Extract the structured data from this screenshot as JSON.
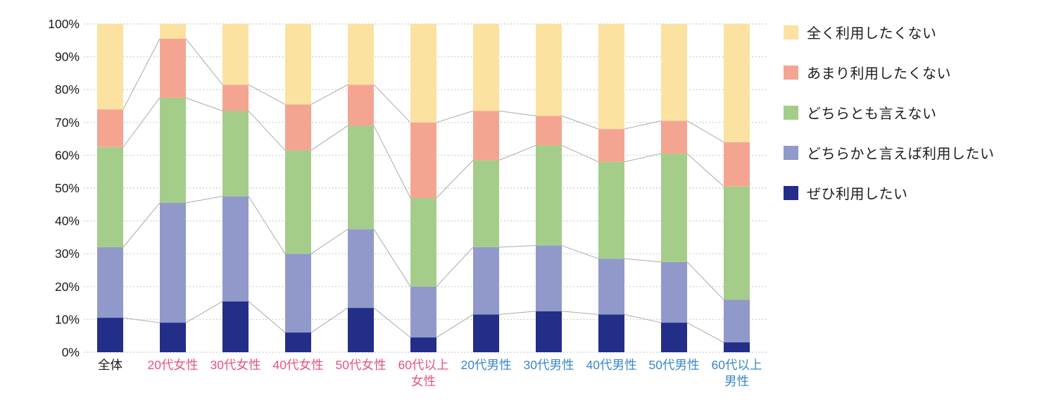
{
  "chart_data": {
    "type": "bar",
    "subtype": "100-percent-stacked-column",
    "title": "",
    "xlabel": "",
    "ylabel": "",
    "ylim": [
      0,
      100
    ],
    "grid": "horizontal-dotted",
    "legend_position": "right",
    "yticks": [
      "0%",
      "10%",
      "20%",
      "30%",
      "40%",
      "50%",
      "60%",
      "70%",
      "80%",
      "90%",
      "100%"
    ],
    "categories": [
      "全体",
      "20代女性",
      "30代女性",
      "40代女性",
      "50代女性",
      "60代以上女性",
      "20代男性",
      "30代男性",
      "40代男性",
      "50代男性",
      "60代以上男性"
    ],
    "category_label_lines": [
      [
        "全体"
      ],
      [
        "20代女性"
      ],
      [
        "30代女性"
      ],
      [
        "40代女性"
      ],
      [
        "50代女性"
      ],
      [
        "60代以上",
        "女性"
      ],
      [
        "20代男性"
      ],
      [
        "30代男性"
      ],
      [
        "40代男性"
      ],
      [
        "50代男性"
      ],
      [
        "60代以上",
        "男性"
      ]
    ],
    "category_styles": [
      "overall",
      "female",
      "female",
      "female",
      "female",
      "female",
      "male",
      "male",
      "male",
      "male",
      "male"
    ],
    "series": [
      {
        "name": "ぜひ利用したい",
        "color": "#232e88",
        "values": [
          10.5,
          9,
          15.5,
          6,
          13.5,
          4.5,
          11.5,
          12.5,
          11.5,
          9,
          3
        ]
      },
      {
        "name": "どちらかと言えば利用したい",
        "color": "#9199cb",
        "values": [
          21.5,
          36.5,
          32,
          24,
          24,
          15.5,
          20.5,
          20,
          17,
          18.5,
          13
        ]
      },
      {
        "name": "どちらとも言えない",
        "color": "#a5cd8a",
        "values": [
          30.5,
          32,
          26,
          31.5,
          31.5,
          27,
          26.5,
          30.5,
          29.5,
          33,
          34.5
        ]
      },
      {
        "name": "あまり利用したくない",
        "color": "#f4a592",
        "values": [
          11.5,
          18,
          8,
          14,
          12.5,
          23,
          15,
          9,
          10,
          10,
          13.5
        ]
      },
      {
        "name": "全く利用したくない",
        "color": "#fbe2a0",
        "values": [
          26,
          4.5,
          18.5,
          24.5,
          18.5,
          30,
          26.5,
          28,
          32,
          29.5,
          36
        ]
      }
    ],
    "legend": {
      "items": [
        {
          "label": "全く利用したくない",
          "color": "#fbe2a0"
        },
        {
          "label": "あまり利用したくない",
          "color": "#f4a592"
        },
        {
          "label": "どちらとも言えない",
          "color": "#a5cd8a"
        },
        {
          "label": "どちらかと言えば利用したい",
          "color": "#9199cb"
        },
        {
          "label": "ぜひ利用したい",
          "color": "#232e88"
        }
      ]
    }
  },
  "colors": {
    "overall_label": "#1a1a1a",
    "female_label": "#e8537e",
    "male_label": "#3a87c6",
    "axis_text": "#1a1a1a",
    "gridline": "#c9c9c9",
    "connector": "#ababab",
    "background": "#ffffff"
  }
}
